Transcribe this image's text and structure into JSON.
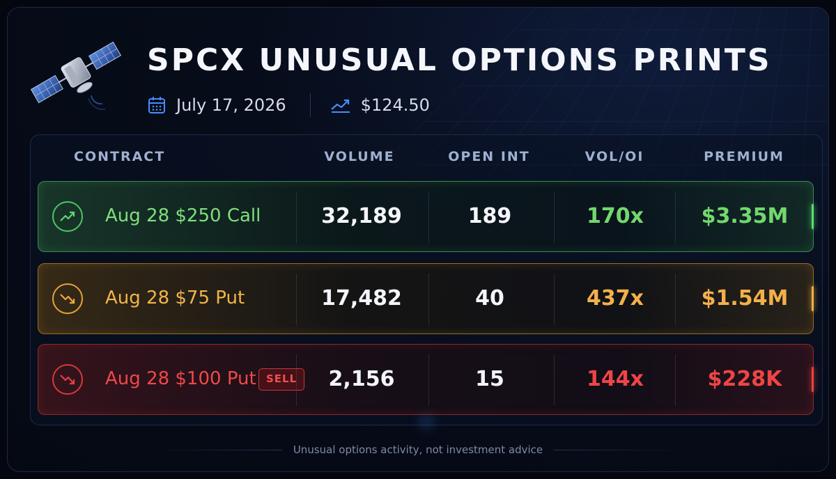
{
  "header": {
    "title": "SPCX UNUSUAL OPTIONS PRINTS",
    "date": "July 17, 2026",
    "price": "$124.50",
    "icons": [
      "satellite-icon",
      "calendar-icon",
      "trend-line-icon"
    ]
  },
  "table": {
    "columns": [
      "CONTRACT",
      "VOLUME",
      "OPEN INT",
      "VOL/OI",
      "PREMIUM"
    ],
    "rows": [
      {
        "contract": "Aug 28 $250 Call",
        "volume": "32,189",
        "open_int": "189",
        "vol_oi": "170x",
        "premium": "$3.35M",
        "tone": "green",
        "icon": "trend-up-icon",
        "badge": ""
      },
      {
        "contract": "Aug 28 $75 Put",
        "volume": "17,482",
        "open_int": "40",
        "vol_oi": "437x",
        "premium": "$1.54M",
        "tone": "amber",
        "icon": "trend-down-icon",
        "badge": ""
      },
      {
        "contract": "Aug 28 $100 Put",
        "volume": "2,156",
        "open_int": "15",
        "vol_oi": "144x",
        "premium": "$228K",
        "tone": "red",
        "icon": "trend-down-icon",
        "badge": "SELL"
      }
    ]
  },
  "footer": {
    "disclaimer": "Unusual options activity, not investment advice"
  },
  "colors": {
    "background": "#050913",
    "green": "#72d86e",
    "amber": "#f3b04a",
    "red": "#ee4546",
    "header_text": "#9fb0cf",
    "accent_blue": "#4a8cff"
  }
}
